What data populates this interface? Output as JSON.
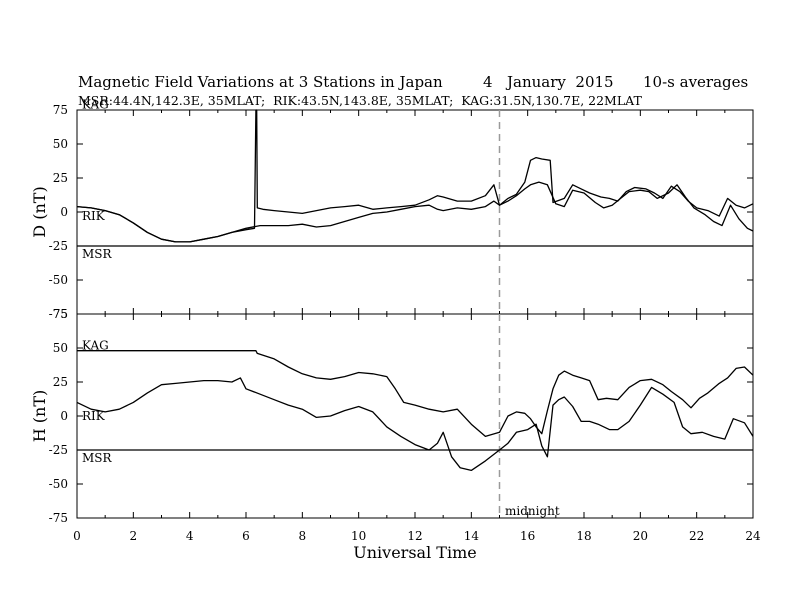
{
  "title": "Magnetic Field Variations at 3 Stations in Japan",
  "date_day": "4",
  "date_rest": "January  2015",
  "averaging": "10-s averages",
  "stations_line": "MSR:44.4N,142.3E, 35MLAT;  RIK:43.5N,143.8E, 35MLAT;  KAG:31.5N,130.7E, 22MLAT",
  "xlabel": "Universal Time",
  "midnight_label": "midnight",
  "colors": {
    "trace": "#000000",
    "midnight_line": "#9a9a9a",
    "background": "#ffffff"
  },
  "chart_data": [
    {
      "type": "line",
      "ylabel": "D (nT)",
      "xlim": [
        0,
        24
      ],
      "ylim": [
        -75,
        75
      ],
      "xticks": [
        0,
        2,
        4,
        6,
        8,
        10,
        12,
        14,
        16,
        18,
        20,
        22,
        24
      ],
      "yticks": [
        -75,
        -50,
        -25,
        0,
        25,
        50,
        75
      ],
      "annotations": [
        {
          "text": "midnight",
          "x": 15,
          "style": "dashed vertical line"
        }
      ],
      "series": [
        {
          "name": "KAG",
          "x": [
            0,
            0.5,
            1,
            1.5,
            2,
            2.5,
            3,
            3.5,
            4,
            4.5,
            5,
            5.5,
            6,
            6.3,
            6.35,
            6.38,
            6.4,
            6.6,
            7,
            7.5,
            8,
            8.5,
            9,
            9.5,
            10,
            10.5,
            11,
            11.5,
            12,
            12.5,
            12.8,
            13,
            13.5,
            14,
            14.5,
            14.8,
            15,
            15.3,
            15.6,
            15.9,
            16.1,
            16.3,
            16.5,
            16.8,
            16.9,
            17.3,
            17.6,
            17.9,
            18.2,
            18.6,
            18.9,
            19.2,
            19.5,
            19.8,
            20.2,
            20.5,
            20.8,
            21.1,
            21.4,
            21.7,
            22,
            22.4,
            22.8,
            23.1,
            23.4,
            23.7,
            24
          ],
          "y": [
            4,
            3,
            1,
            -2,
            -8,
            -15,
            -20,
            -22,
            -22,
            -20,
            -18,
            -15,
            -13,
            -12,
            75,
            75,
            3,
            2,
            1,
            0,
            -1,
            1,
            3,
            4,
            5,
            2,
            3,
            4,
            5,
            9,
            12,
            11,
            8,
            8,
            12,
            20,
            5,
            10,
            13,
            22,
            38,
            40,
            39,
            38,
            7,
            10,
            20,
            17,
            14,
            11,
            10,
            8,
            15,
            18,
            17,
            14,
            10,
            19,
            15,
            8,
            3,
            1,
            -3,
            10,
            5,
            3,
            6
          ]
        },
        {
          "name": "RIK",
          "x": [
            0,
            0.5,
            1,
            1.5,
            2,
            2.5,
            3,
            3.5,
            4,
            4.5,
            5,
            5.5,
            6,
            6.5,
            7,
            7.5,
            8,
            8.5,
            9,
            9.5,
            10,
            10.5,
            11,
            11.5,
            12,
            12.5,
            12.8,
            13,
            13.5,
            14,
            14.5,
            14.8,
            15,
            15.3,
            15.6,
            15.9,
            16.1,
            16.4,
            16.7,
            17,
            17.3,
            17.6,
            18,
            18.4,
            18.7,
            19,
            19.3,
            19.6,
            20,
            20.3,
            20.6,
            21,
            21.3,
            21.6,
            21.9,
            22.3,
            22.6,
            22.9,
            23.2,
            23.5,
            23.8,
            24
          ],
          "y": [
            4,
            3,
            1,
            -2,
            -8,
            -15,
            -20,
            -22,
            -22,
            -20,
            -18,
            -15,
            -12,
            -10,
            -10,
            -10,
            -9,
            -11,
            -10,
            -7,
            -4,
            -1,
            0,
            2,
            4,
            5,
            2,
            1,
            3,
            2,
            4,
            8,
            5,
            8,
            12,
            17,
            20,
            22,
            20,
            6,
            4,
            16,
            14,
            7,
            3,
            5,
            10,
            15,
            16,
            15,
            10,
            14,
            20,
            11,
            3,
            -2,
            -7,
            -10,
            5,
            -5,
            -12,
            -14
          ]
        }
      ]
    },
    {
      "type": "line",
      "ylabel": "H (nT)",
      "xlim": [
        0,
        24
      ],
      "ylim": [
        -75,
        75
      ],
      "xticks": [
        0,
        2,
        4,
        6,
        8,
        10,
        12,
        14,
        16,
        18,
        20,
        22,
        24
      ],
      "yticks": [
        -75,
        -50,
        -25,
        0,
        25,
        50,
        75
      ],
      "annotations": [
        {
          "text": "midnight",
          "x": 15,
          "style": "dashed vertical line"
        }
      ],
      "series": [
        {
          "name": "KAG",
          "x": [
            0,
            6.35,
            6.4,
            7,
            7.5,
            8,
            8.5,
            9,
            9.5,
            10,
            10.5,
            11,
            11.3,
            11.6,
            12,
            12.5,
            13,
            13.5,
            14,
            14.5,
            15,
            15.3,
            15.6,
            15.9,
            16.1,
            16.3,
            16.5,
            16.7,
            16.9,
            17.1,
            17.3,
            17.6,
            17.9,
            18.2,
            18.5,
            18.8,
            19.2,
            19.6,
            20,
            20.4,
            20.8,
            21.1,
            21.5,
            21.8,
            22.1,
            22.4,
            22.8,
            23.1,
            23.4,
            23.7,
            24
          ],
          "y": [
            48,
            48,
            46,
            42,
            36,
            31,
            28,
            27,
            29,
            32,
            31,
            29,
            20,
            10,
            8,
            5,
            3,
            5,
            -6,
            -15,
            -12,
            0,
            3,
            2,
            -2,
            -8,
            -13,
            4,
            20,
            30,
            33,
            30,
            28,
            26,
            12,
            13,
            12,
            21,
            26,
            27,
            23,
            18,
            12,
            6,
            13,
            17,
            24,
            28,
            35,
            36,
            30
          ]
        },
        {
          "name": "RIK",
          "x": [
            0,
            0.5,
            1,
            1.5,
            2,
            2.5,
            3,
            3.5,
            4,
            4.5,
            5,
            5.5,
            5.8,
            6,
            6.5,
            7,
            7.5,
            8,
            8.5,
            9,
            9.5,
            10,
            10.5,
            11,
            11.5,
            12,
            12.5,
            12.8,
            13,
            13.3,
            13.6,
            14,
            14.5,
            15,
            15.3,
            15.6,
            16,
            16.3,
            16.5,
            16.7,
            16.9,
            17.1,
            17.3,
            17.6,
            17.9,
            18.2,
            18.5,
            18.9,
            19.2,
            19.6,
            20,
            20.4,
            20.8,
            21.2,
            21.5,
            21.8,
            22.2,
            22.6,
            23,
            23.3,
            23.7,
            24
          ],
          "y": [
            10,
            5,
            3,
            5,
            10,
            17,
            23,
            24,
            25,
            26,
            26,
            25,
            28,
            20,
            16,
            12,
            8,
            5,
            -1,
            0,
            4,
            7,
            3,
            -8,
            -15,
            -21,
            -25,
            -20,
            -12,
            -30,
            -38,
            -40,
            -33,
            -25,
            -20,
            -12,
            -10,
            -6,
            -22,
            -30,
            8,
            12,
            14,
            7,
            -4,
            -4,
            -6,
            -10,
            -10,
            -4,
            8,
            21,
            16,
            10,
            -8,
            -13,
            -12,
            -15,
            -17,
            -2,
            -5,
            -15
          ]
        },
        {
          "name": "MSR",
          "x": [],
          "y": []
        }
      ]
    }
  ]
}
